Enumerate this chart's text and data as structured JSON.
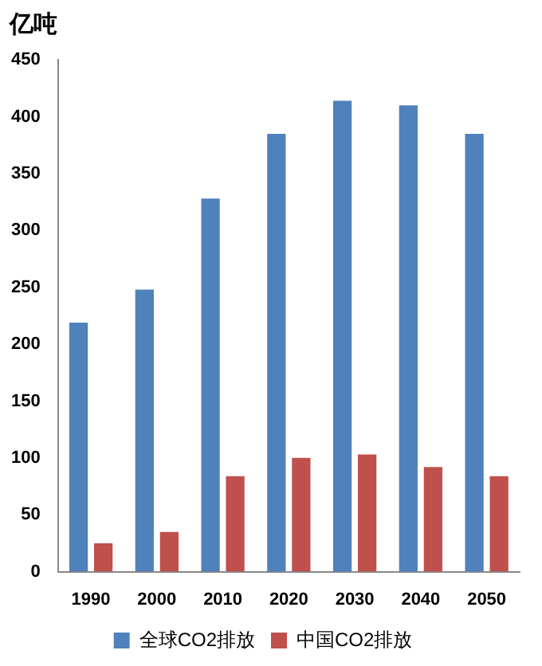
{
  "chart_data": {
    "type": "bar",
    "ylabel": "亿吨",
    "categories": [
      "1990",
      "2000",
      "2010",
      "2020",
      "2030",
      "2040",
      "2050"
    ],
    "series": [
      {
        "name": "全球CO2排放",
        "color": "#4f81bd",
        "values": [
          219,
          248,
          328,
          385,
          414,
          410,
          385
        ]
      },
      {
        "name": "中国CO2排放",
        "color": "#c0504d",
        "values": [
          25,
          35,
          84,
          100,
          103,
          92,
          84
        ]
      }
    ],
    "ylim": [
      0,
      450
    ],
    "yticks": [
      0,
      50,
      100,
      150,
      200,
      250,
      300,
      350,
      400,
      450
    ],
    "grid": false,
    "legend": "bottom"
  }
}
